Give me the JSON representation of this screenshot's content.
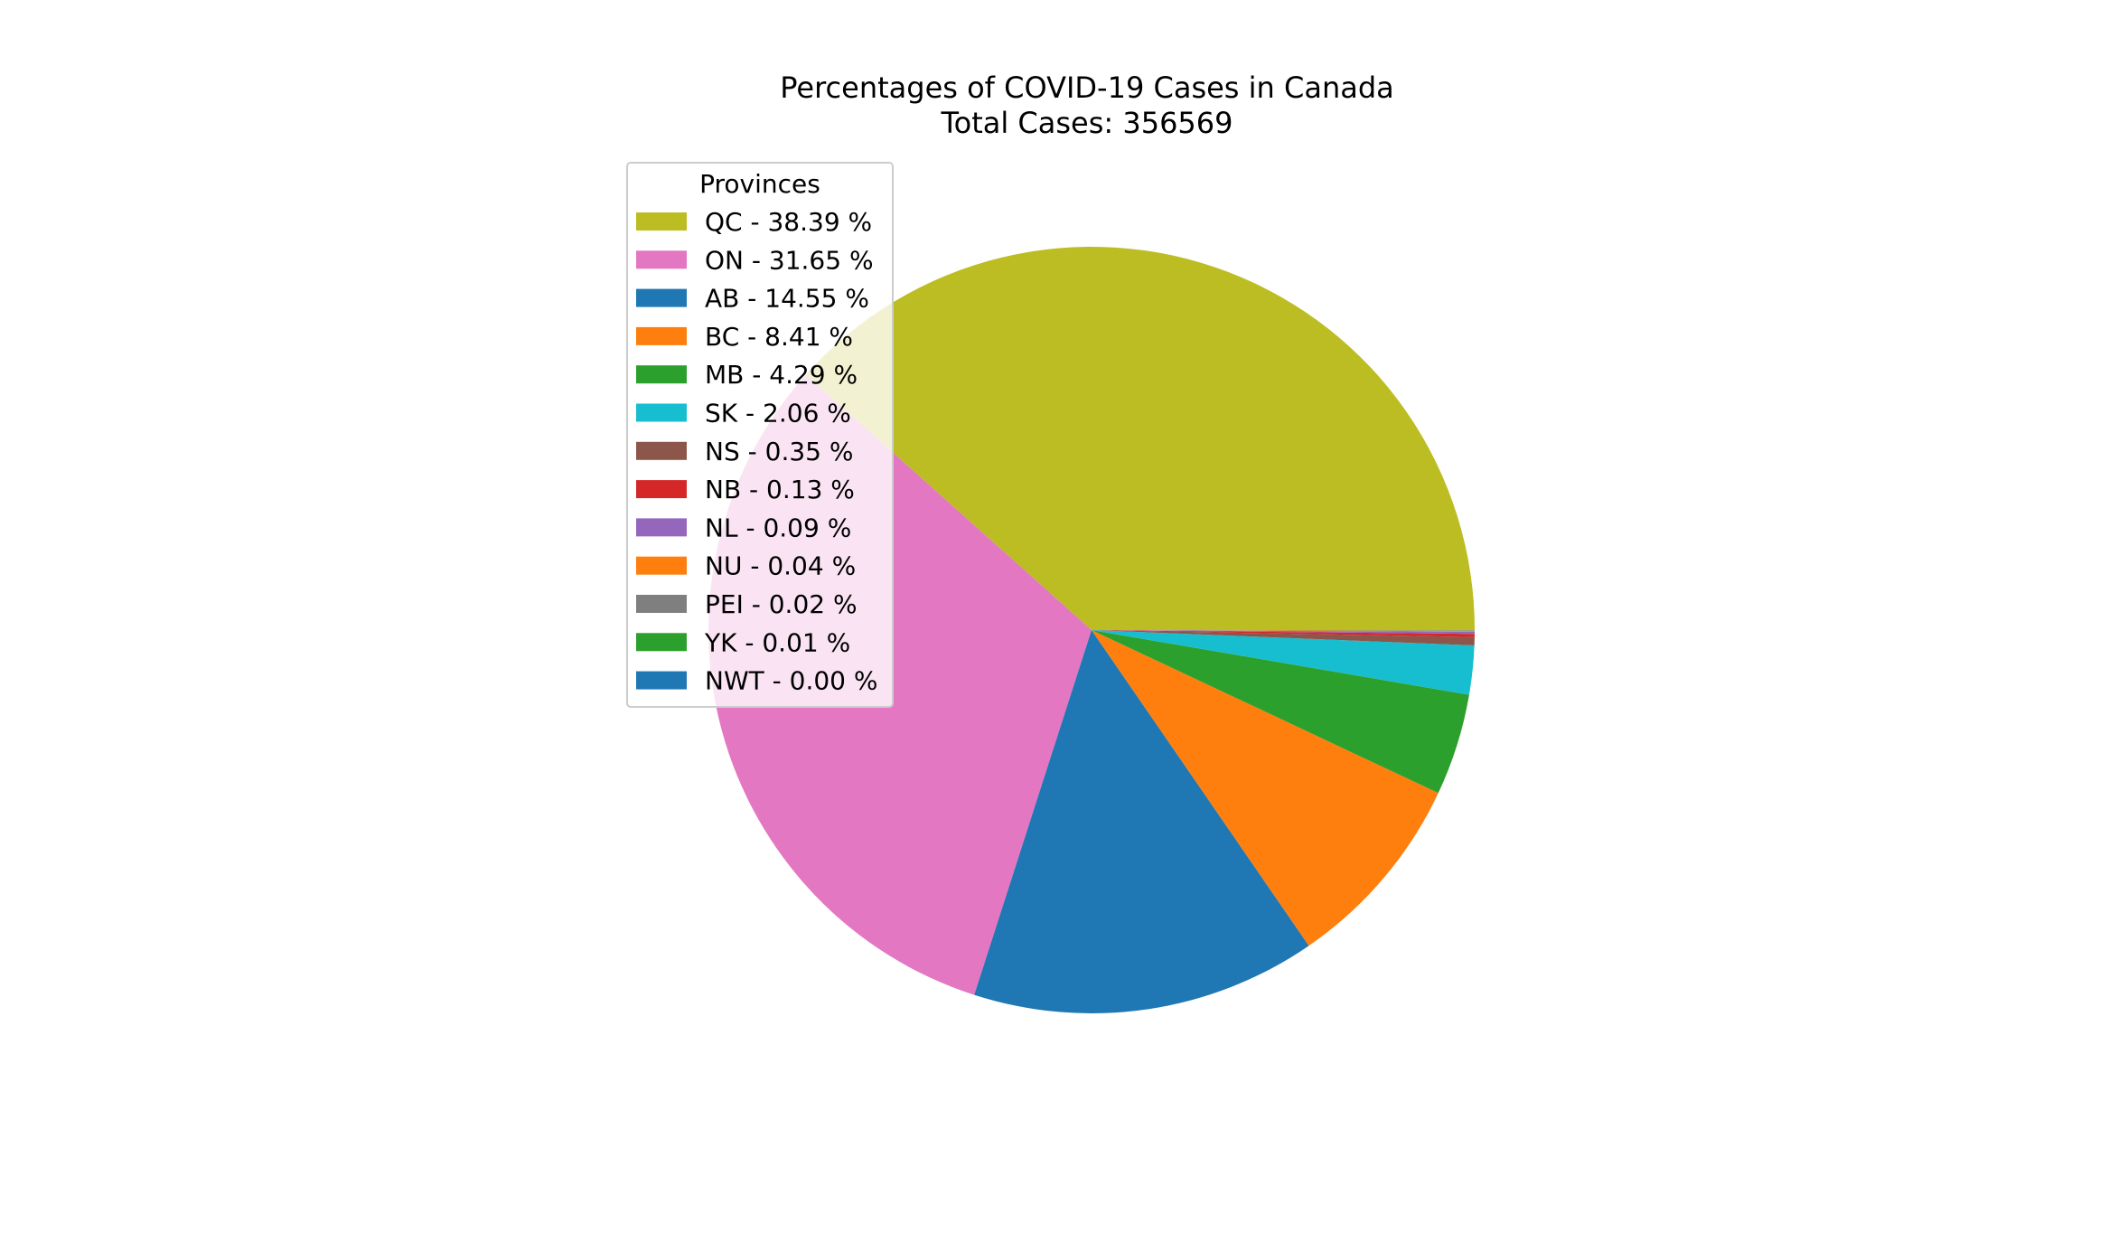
{
  "chart_data": {
    "type": "pie",
    "title": "Percentages of COVID-19 Cases in Canada",
    "subtitle": "Total Cases: 356569",
    "legend": {
      "title": "Provinces",
      "placement": "upper-left"
    },
    "slices": [
      {
        "label": "QC - 38.39 %",
        "category": "QC",
        "value": 38.39,
        "color": "#bcbd22"
      },
      {
        "label": "ON - 31.65 %",
        "category": "ON",
        "value": 31.65,
        "color": "#e377c2"
      },
      {
        "label": "AB - 14.55 %",
        "category": "AB",
        "value": 14.55,
        "color": "#1f77b4"
      },
      {
        "label": "BC - 8.41 %",
        "category": "BC",
        "value": 8.41,
        "color": "#ff7f0e"
      },
      {
        "label": "MB - 4.29 %",
        "category": "MB",
        "value": 4.29,
        "color": "#2ca02c"
      },
      {
        "label": "SK - 2.06 %",
        "category": "SK",
        "value": 2.06,
        "color": "#17becf"
      },
      {
        "label": "NS - 0.35 %",
        "category": "NS",
        "value": 0.35,
        "color": "#8c564b"
      },
      {
        "label": "NB - 0.13 %",
        "category": "NB",
        "value": 0.13,
        "color": "#d62728"
      },
      {
        "label": "NL - 0.09 %",
        "category": "NL",
        "value": 0.09,
        "color": "#9467bd"
      },
      {
        "label": "NU - 0.04 %",
        "category": "NU",
        "value": 0.04,
        "color": "#ff7f0e"
      },
      {
        "label": "PEI - 0.02 %",
        "category": "PEI",
        "value": 0.02,
        "color": "#7f7f7f"
      },
      {
        "label": "YK - 0.01 %",
        "category": "YK",
        "value": 0.01,
        "color": "#2ca02c"
      },
      {
        "label": "NWT - 0.00 %",
        "category": "NWT",
        "value": 0.0,
        "color": "#1f77b4"
      }
    ]
  }
}
